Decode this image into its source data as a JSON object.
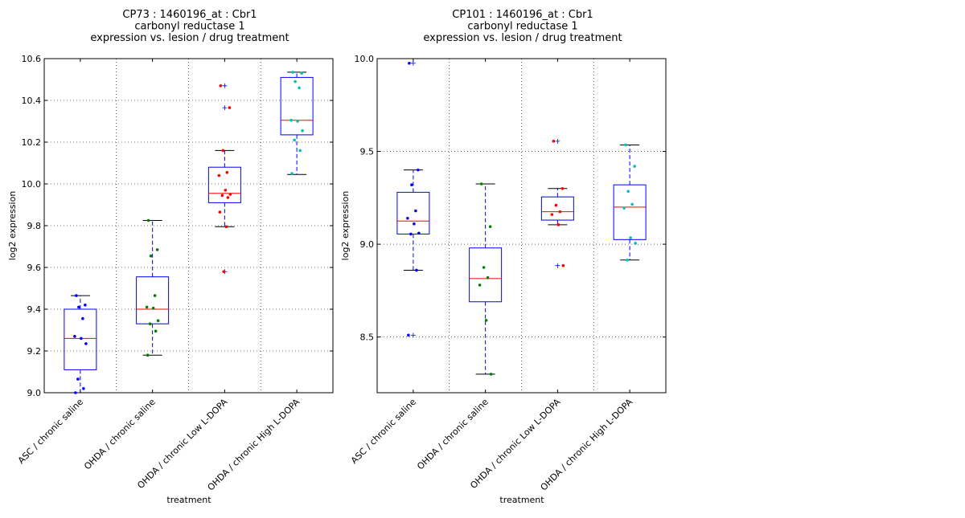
{
  "chart_data": [
    {
      "type": "box",
      "title": [
        "CP73 : 1460196_at : Cbr1",
        "carbonyl reductase 1",
        "expression vs. lesion / drug treatment"
      ],
      "xlabel": "treatment",
      "ylabel": "log2 expression",
      "ylim": [
        9.0,
        10.6
      ],
      "yticks": [
        9.0,
        9.2,
        9.4,
        9.6,
        9.8,
        10.0,
        10.2,
        10.4,
        10.6
      ],
      "ytick_labels": [
        "9.0",
        "9.2",
        "9.4",
        "9.6",
        "9.8",
        "10.0",
        "10.2",
        "10.4",
        "10.6"
      ],
      "grid": true,
      "categories": [
        "ASC / chronic saline",
        "OHDA / chronic saline",
        "OHDA / chronic Low L-DOPA",
        "OHDA / chronic High L-DOPA"
      ],
      "colors": {
        "box": "#0000ff",
        "median": "#ff0000",
        "whisker": "#0000ff",
        "cap": "#000000"
      },
      "boxes": [
        {
          "category": "ASC / chronic saline",
          "q1": 9.11,
          "median": 9.26,
          "q3": 9.4,
          "whislo": 9.0,
          "whishi": 9.465,
          "fliers": [],
          "point_color": "#0000ff",
          "points": [
            9.465,
            9.42,
            9.41,
            9.355,
            9.27,
            9.26,
            9.235,
            9.065,
            9.02,
            9.0
          ]
        },
        {
          "category": "OHDA / chronic saline",
          "q1": 9.33,
          "median": 9.4,
          "q3": 9.555,
          "whislo": 9.18,
          "whishi": 9.825,
          "fliers": [],
          "point_color": "#008000",
          "points": [
            9.825,
            9.685,
            9.655,
            9.465,
            9.41,
            9.405,
            9.345,
            9.33,
            9.295,
            9.18
          ]
        },
        {
          "category": "OHDA / chronic Low L-DOPA",
          "q1": 9.91,
          "median": 9.955,
          "q3": 10.08,
          "whislo": 9.795,
          "whishi": 10.16,
          "fliers": [
            10.47,
            10.365,
            9.58
          ],
          "point_color": "#ff0000",
          "points": [
            10.47,
            10.365,
            10.16,
            10.055,
            10.04,
            9.97,
            9.95,
            9.945,
            9.935,
            9.865,
            9.795,
            9.58
          ]
        },
        {
          "category": "OHDA / chronic High L-DOPA",
          "q1": 10.235,
          "median": 10.305,
          "q3": 10.51,
          "whislo": 10.045,
          "whishi": 10.535,
          "fliers": [],
          "point_color": "#00bfbf",
          "points": [
            10.535,
            10.53,
            10.49,
            10.46,
            10.305,
            10.3,
            10.255,
            10.21,
            10.16,
            10.05
          ]
        }
      ]
    },
    {
      "type": "box",
      "title": [
        "CP101 : 1460196_at : Cbr1",
        "carbonyl reductase 1",
        "expression vs. lesion / drug treatment"
      ],
      "xlabel": "treatment",
      "ylabel": "log2 expression",
      "ylim": [
        8.2,
        10.0
      ],
      "yticks": [
        8.5,
        9.0,
        9.5,
        10.0
      ],
      "ytick_labels": [
        "8.5",
        "9.0",
        "9.5",
        "10.0"
      ],
      "grid": true,
      "categories": [
        "ASC / chronic saline",
        "OHDA / chronic saline",
        "OHDA / chronic Low L-DOPA",
        "OHDA / chronic High L-DOPA"
      ],
      "colors": {
        "box": "#0000ff",
        "median": "#ff0000",
        "whisker": "#0000ff",
        "cap": "#000000"
      },
      "boxes": [
        {
          "category": "ASC / chronic saline",
          "q1": 9.055,
          "median": 9.125,
          "q3": 9.28,
          "whislo": 8.86,
          "whishi": 9.4,
          "fliers": [
            9.975,
            8.51
          ],
          "point_color": "#0000ff",
          "points": [
            9.975,
            9.4,
            9.32,
            9.18,
            9.14,
            9.11,
            9.06,
            9.055,
            8.86,
            8.51
          ]
        },
        {
          "category": "OHDA / chronic saline",
          "q1": 8.69,
          "median": 8.815,
          "q3": 8.98,
          "whislo": 8.3,
          "whishi": 9.325,
          "fliers": [],
          "point_color": "#008000",
          "points": [
            9.325,
            9.095,
            8.875,
            8.82,
            8.78,
            8.59,
            8.3
          ]
        },
        {
          "category": "OHDA / chronic Low L-DOPA",
          "q1": 9.13,
          "median": 9.175,
          "q3": 9.255,
          "whislo": 9.105,
          "whishi": 9.3,
          "fliers": [
            9.555,
            8.885
          ],
          "point_color": "#ff0000",
          "points": [
            9.555,
            9.3,
            9.21,
            9.175,
            9.16,
            9.105,
            8.885
          ]
        },
        {
          "category": "OHDA / chronic High L-DOPA",
          "q1": 9.025,
          "median": 9.2,
          "q3": 9.32,
          "whislo": 8.915,
          "whishi": 9.535,
          "fliers": [],
          "point_color": "#00bfbf",
          "points": [
            9.535,
            9.42,
            9.285,
            9.215,
            9.195,
            9.035,
            9.005,
            8.915
          ]
        }
      ]
    }
  ]
}
